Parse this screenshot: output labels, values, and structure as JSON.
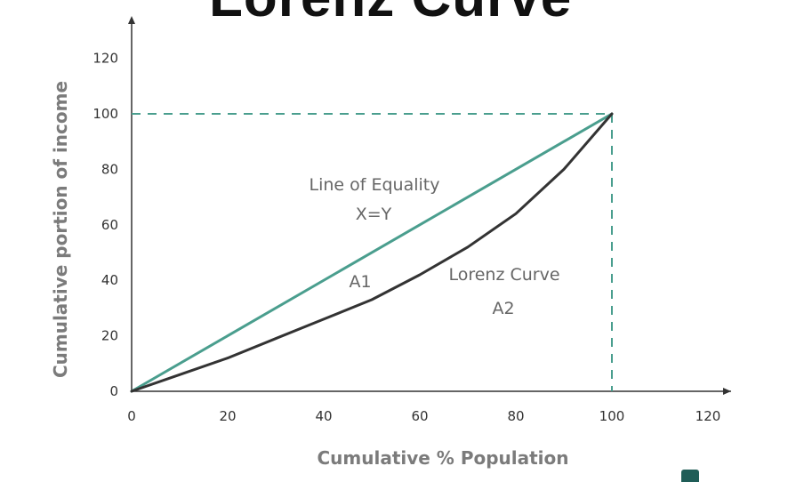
{
  "chart_data": {
    "type": "line",
    "title": "Lorenz Curve",
    "xlabel": "Cumulative % Population",
    "ylabel": "Cumulative portion of income",
    "xlim": [
      0,
      120
    ],
    "ylim": [
      0,
      120
    ],
    "x_ticks": [
      "0",
      "20",
      "40",
      "60",
      "80",
      "100",
      "120"
    ],
    "y_ticks": [
      "0",
      "20",
      "40",
      "60",
      "80",
      "100",
      "120"
    ],
    "grid": false,
    "series": [
      {
        "name": "Line of Equality",
        "color": "#4a9e8e",
        "x": [
          0,
          100
        ],
        "y": [
          0,
          100
        ]
      },
      {
        "name": "Lorenz Curve",
        "color": "#333333",
        "x": [
          0,
          10,
          20,
          30,
          40,
          50,
          60,
          70,
          80,
          90,
          100
        ],
        "y": [
          0,
          6,
          12,
          19,
          26,
          33,
          42,
          52,
          64,
          80,
          100
        ]
      }
    ],
    "reference_lines": {
      "color": "#4a9e8e",
      "style": "dashed",
      "horizontal_y": 100,
      "vertical_x": 100
    },
    "annotations": {
      "equality_label": "Line of Equality",
      "equality_equation": "X=Y",
      "area_a1": "A1",
      "lorenz_label": "Lorenz Curve",
      "area_a2": "A2"
    }
  }
}
